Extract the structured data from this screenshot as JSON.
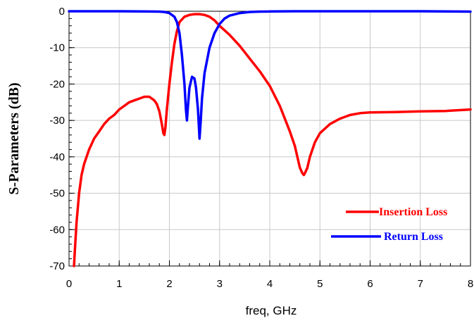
{
  "chart_data": {
    "type": "line",
    "xlabel": "freq, GHz",
    "ylabel": "S-Parameters (dB)",
    "xlim": [
      0,
      8
    ],
    "ylim": [
      -70,
      0
    ],
    "xticks": [
      "0",
      "1",
      "2",
      "3",
      "4",
      "5",
      "6",
      "7",
      "8"
    ],
    "yticks": [
      "0",
      "-10",
      "-20",
      "-30",
      "-40",
      "-50",
      "-60",
      "-70"
    ],
    "grid": true,
    "legend_position": "bottom-right",
    "series": [
      {
        "name": "Insertion Loss",
        "color": "#ff0000",
        "x": [
          0.1,
          0.12,
          0.15,
          0.2,
          0.25,
          0.3,
          0.4,
          0.5,
          0.6,
          0.7,
          0.8,
          0.9,
          1.0,
          1.1,
          1.2,
          1.3,
          1.4,
          1.5,
          1.6,
          1.7,
          1.75,
          1.8,
          1.85,
          1.88,
          1.9,
          1.92,
          1.95,
          2.0,
          2.05,
          2.1,
          2.15,
          2.2,
          2.3,
          2.4,
          2.5,
          2.6,
          2.7,
          2.8,
          2.9,
          3.0,
          3.2,
          3.4,
          3.6,
          3.8,
          4.0,
          4.2,
          4.4,
          4.5,
          4.55,
          4.6,
          4.65,
          4.68,
          4.7,
          4.75,
          4.8,
          4.9,
          5.0,
          5.2,
          5.4,
          5.6,
          5.8,
          6.0,
          6.5,
          7.0,
          7.5,
          8.0
        ],
        "y": [
          -70,
          -65,
          -58,
          -50,
          -45,
          -42,
          -38,
          -35,
          -33,
          -31,
          -29.5,
          -28.5,
          -27,
          -26,
          -25,
          -24.5,
          -24,
          -23.5,
          -23.5,
          -24.5,
          -25.5,
          -27.5,
          -31,
          -33.5,
          -34,
          -32,
          -27,
          -20,
          -14,
          -9,
          -5.5,
          -3,
          -1.5,
          -1,
          -0.8,
          -0.8,
          -1,
          -1.5,
          -2.5,
          -4,
          -6.5,
          -9.5,
          -13,
          -16.5,
          -20.5,
          -26,
          -33,
          -37,
          -40,
          -43,
          -44.5,
          -45,
          -44.5,
          -43,
          -40,
          -36,
          -33.5,
          -31,
          -29.5,
          -28.5,
          -28,
          -27.8,
          -27.7,
          -27.5,
          -27.4,
          -27
        ]
      },
      {
        "name": "Return Loss",
        "color": "#0000ff",
        "x": [
          0,
          1.0,
          1.5,
          1.8,
          1.9,
          2.0,
          2.1,
          2.15,
          2.2,
          2.25,
          2.3,
          2.33,
          2.35,
          2.37,
          2.4,
          2.45,
          2.5,
          2.53,
          2.57,
          2.6,
          2.62,
          2.65,
          2.7,
          2.8,
          2.9,
          3.0,
          3.1,
          3.2,
          3.4,
          3.6,
          3.8,
          4.0,
          4.5,
          5.0,
          6.0,
          7.0,
          8.0
        ],
        "y": [
          0,
          0,
          -0.05,
          -0.1,
          -0.2,
          -0.5,
          -1.5,
          -3,
          -6,
          -12,
          -20,
          -27,
          -30,
          -26,
          -21,
          -18,
          -18.5,
          -21,
          -27,
          -35,
          -31,
          -24,
          -17,
          -10,
          -6,
          -3.5,
          -2,
          -1.2,
          -0.5,
          -0.2,
          -0.1,
          -0.05,
          0,
          0,
          0,
          0,
          -0.1
        ]
      }
    ]
  }
}
